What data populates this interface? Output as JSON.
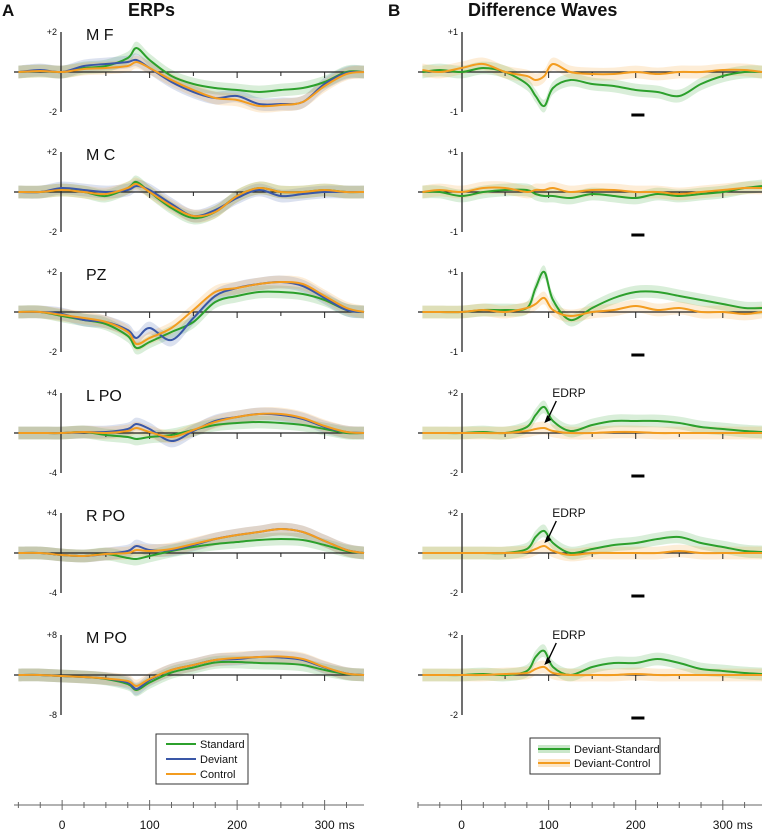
{
  "panel_a": {
    "letter": "A",
    "title": "ERPs"
  },
  "panel_b": {
    "letter": "B",
    "title": "Difference Waves"
  },
  "colors": {
    "standard": "#2ca02c",
    "deviant": "#3a57a7",
    "control": "#f39c1f",
    "axis": "#222222"
  },
  "legend_a": [
    "Standard",
    "Deviant",
    "Control"
  ],
  "legend_b": [
    "Deviant-Standard",
    "Deviant-Control"
  ],
  "x_axis": {
    "ticks": [
      "0",
      "100",
      "200",
      "300"
    ],
    "unit": "ms"
  },
  "annotation": "EDRP",
  "chart_data": [
    {
      "type": "line",
      "panel": "A",
      "channel": "M F",
      "ylim": [
        -2,
        2
      ],
      "ytick_labels": [
        "+2",
        "-2"
      ],
      "xlim": [
        -55,
        345
      ],
      "x": [
        -50,
        -25,
        0,
        25,
        50,
        75,
        85,
        100,
        125,
        150,
        175,
        200,
        225,
        250,
        275,
        300,
        325,
        345
      ],
      "series": [
        {
          "name": "Standard",
          "values": [
            0,
            0.05,
            0,
            0.2,
            0.3,
            0.7,
            1.2,
            0.6,
            -0.2,
            -0.6,
            -0.8,
            -0.9,
            -1.0,
            -0.9,
            -0.8,
            -0.5,
            0,
            0
          ]
        },
        {
          "name": "Deviant",
          "values": [
            0,
            0.1,
            0,
            0.3,
            0.4,
            0.5,
            0.6,
            0.2,
            -0.5,
            -1.0,
            -1.3,
            -1.2,
            -1.6,
            -1.6,
            -1.5,
            -0.6,
            -0.05,
            0
          ]
        },
        {
          "name": "Control",
          "values": [
            0,
            0.05,
            0,
            0.15,
            0.2,
            0.3,
            0.5,
            0.2,
            -0.4,
            -0.9,
            -1.3,
            -1.4,
            -1.7,
            -1.65,
            -1.5,
            -0.7,
            -0.1,
            0
          ]
        }
      ]
    },
    {
      "type": "line",
      "panel": "A",
      "channel": "M C",
      "ylim": [
        -2,
        2
      ],
      "ytick_labels": [
        "+2",
        "-2"
      ],
      "xlim": [
        -55,
        345
      ],
      "x": [
        -50,
        -25,
        0,
        25,
        50,
        75,
        85,
        100,
        125,
        150,
        175,
        200,
        225,
        250,
        275,
        300,
        325,
        345
      ],
      "series": [
        {
          "name": "Standard",
          "values": [
            0,
            0,
            0.1,
            0,
            -0.2,
            0.2,
            0.5,
            0,
            -0.8,
            -1.3,
            -1.0,
            -0.2,
            0.2,
            0,
            0,
            0.1,
            0,
            0
          ]
        },
        {
          "name": "Deviant",
          "values": [
            0,
            0,
            0.2,
            0.1,
            0,
            0.1,
            0.3,
            0.1,
            -0.6,
            -1.2,
            -0.9,
            -0.3,
            0.1,
            -0.2,
            -0.1,
            0,
            0,
            0
          ]
        },
        {
          "name": "Control",
          "values": [
            0,
            0,
            0.1,
            0,
            -0.1,
            0.2,
            0.4,
            0,
            -0.7,
            -1.2,
            -1.0,
            -0.2,
            0.2,
            0,
            0,
            0.1,
            0,
            0
          ]
        }
      ]
    },
    {
      "type": "line",
      "panel": "A",
      "channel": "PZ",
      "ylim": [
        -2,
        2
      ],
      "ytick_labels": [
        "+2",
        "-2"
      ],
      "xlim": [
        -55,
        345
      ],
      "x": [
        -50,
        -25,
        0,
        25,
        50,
        75,
        85,
        100,
        125,
        150,
        175,
        200,
        225,
        250,
        275,
        300,
        325,
        345
      ],
      "series": [
        {
          "name": "Standard",
          "values": [
            0,
            0,
            -0.2,
            -0.4,
            -0.6,
            -1.2,
            -1.8,
            -1.5,
            -1.0,
            -0.5,
            0.5,
            0.8,
            1.0,
            1.0,
            0.9,
            0.6,
            0.1,
            0
          ]
        },
        {
          "name": "Deviant",
          "values": [
            0,
            0,
            -0.1,
            -0.4,
            -0.5,
            -0.9,
            -1.3,
            -0.8,
            -1.4,
            -0.3,
            0.8,
            1.2,
            1.4,
            1.5,
            1.3,
            0.7,
            0.1,
            0
          ]
        },
        {
          "name": "Control",
          "values": [
            0,
            0,
            -0.15,
            -0.3,
            -0.5,
            -1.0,
            -1.6,
            -1.3,
            -0.8,
            0.1,
            1.0,
            1.2,
            1.4,
            1.5,
            1.4,
            0.8,
            0.2,
            0
          ]
        }
      ]
    },
    {
      "type": "line",
      "panel": "A",
      "channel": "L PO",
      "ylim": [
        -4,
        4
      ],
      "ytick_labels": [
        "+4",
        "-4"
      ],
      "xlim": [
        -55,
        345
      ],
      "x": [
        -50,
        -25,
        0,
        25,
        50,
        75,
        85,
        100,
        125,
        150,
        175,
        200,
        225,
        250,
        275,
        300,
        325,
        345
      ],
      "series": [
        {
          "name": "Standard",
          "values": [
            0,
            0,
            0,
            0.1,
            -0.2,
            -0.4,
            -0.6,
            -0.4,
            -0.2,
            0.3,
            0.8,
            1.0,
            1.1,
            1.0,
            0.8,
            0.4,
            0,
            0
          ]
        },
        {
          "name": "Deviant",
          "values": [
            0,
            0,
            0,
            0.1,
            0.1,
            0.4,
            0.9,
            0.4,
            -0.8,
            0.2,
            1.2,
            1.6,
            1.9,
            1.8,
            1.4,
            0.6,
            0.1,
            0
          ]
        },
        {
          "name": "Control",
          "values": [
            0,
            0,
            0,
            0.1,
            0,
            0.2,
            0.5,
            0.1,
            -0.4,
            0.3,
            1.1,
            1.6,
            1.9,
            1.9,
            1.5,
            0.7,
            0.1,
            0
          ]
        }
      ]
    },
    {
      "type": "line",
      "panel": "A",
      "channel": "R PO",
      "ylim": [
        -4,
        4
      ],
      "ytick_labels": [
        "+4",
        "-4"
      ],
      "xlim": [
        -55,
        345
      ],
      "x": [
        -50,
        -25,
        0,
        25,
        50,
        75,
        85,
        100,
        125,
        150,
        175,
        200,
        225,
        250,
        275,
        300,
        325,
        345
      ],
      "series": [
        {
          "name": "Standard",
          "values": [
            0,
            0,
            -0.2,
            -0.3,
            -0.1,
            -0.5,
            -0.6,
            -0.3,
            0.2,
            0.6,
            0.9,
            1.1,
            1.3,
            1.4,
            1.3,
            0.8,
            0.2,
            0
          ]
        },
        {
          "name": "Deviant",
          "values": [
            0,
            0,
            -0.2,
            -0.3,
            -0.1,
            0.2,
            0.7,
            0.3,
            0.3,
            0.8,
            1.4,
            1.8,
            2.1,
            2.4,
            2.1,
            1.2,
            0.3,
            0
          ]
        },
        {
          "name": "Control",
          "values": [
            0,
            0,
            -0.2,
            -0.3,
            -0.1,
            0,
            0.3,
            0.2,
            0.4,
            0.9,
            1.4,
            1.8,
            2.1,
            2.4,
            2.1,
            1.2,
            0.3,
            0
          ]
        }
      ]
    },
    {
      "type": "line",
      "panel": "A",
      "channel": "M PO",
      "ylim": [
        -8,
        8
      ],
      "ytick_labels": [
        "+8",
        "-8"
      ],
      "xlim": [
        -55,
        345
      ],
      "x": [
        -50,
        -25,
        0,
        25,
        50,
        75,
        85,
        100,
        125,
        150,
        175,
        200,
        225,
        250,
        275,
        300,
        325,
        345
      ],
      "series": [
        {
          "name": "Standard",
          "values": [
            0,
            0,
            -0.2,
            -0.4,
            -0.8,
            -1.8,
            -3.0,
            -1.5,
            0.5,
            1.5,
            2.5,
            2.6,
            2.4,
            2.3,
            2.0,
            1.0,
            0.2,
            0
          ]
        },
        {
          "name": "Deviant",
          "values": [
            0,
            0,
            -0.2,
            -0.4,
            -0.7,
            -1.5,
            -2.8,
            -1.0,
            1.0,
            2.0,
            3.0,
            3.2,
            3.6,
            3.5,
            3.0,
            1.5,
            0.3,
            0
          ]
        },
        {
          "name": "Control",
          "values": [
            0,
            0,
            -0.2,
            -0.4,
            -0.7,
            -1.2,
            -2.2,
            -0.8,
            1.0,
            2.0,
            3.0,
            3.4,
            3.6,
            3.7,
            3.2,
            1.6,
            0.3,
            0
          ]
        }
      ]
    },
    {
      "type": "line",
      "panel": "B",
      "channel": "",
      "ylim": [
        -1,
        1
      ],
      "ytick_labels": [
        "+1",
        "-1"
      ],
      "xlim": [
        -50,
        345
      ],
      "x": [
        -45,
        -25,
        0,
        25,
        50,
        75,
        85,
        95,
        105,
        125,
        150,
        175,
        200,
        225,
        250,
        275,
        300,
        325,
        345
      ],
      "series": [
        {
          "name": "Deviant-Standard",
          "values": [
            0,
            0.05,
            0,
            0.1,
            0,
            -0.3,
            -0.6,
            -0.85,
            -0.4,
            -0.2,
            -0.3,
            -0.35,
            -0.45,
            -0.5,
            -0.6,
            -0.3,
            -0.1,
            0,
            0
          ]
        },
        {
          "name": "Deviant-Control",
          "values": [
            0.05,
            0,
            0.1,
            0.2,
            0,
            -0.1,
            -0.2,
            -0.1,
            0.2,
            0,
            -0.05,
            -0.05,
            0,
            -0.05,
            0,
            0,
            0.05,
            0.05,
            0
          ]
        }
      ]
    },
    {
      "type": "line",
      "panel": "B",
      "channel": "",
      "ylim": [
        -1,
        1
      ],
      "ytick_labels": [
        "+1",
        "-1"
      ],
      "xlim": [
        -50,
        345
      ],
      "x": [
        -45,
        -25,
        0,
        25,
        50,
        75,
        85,
        95,
        105,
        125,
        150,
        175,
        200,
        225,
        250,
        275,
        300,
        325,
        345
      ],
      "series": [
        {
          "name": "Deviant-Standard",
          "values": [
            0,
            0,
            -0.1,
            0,
            0.05,
            0.05,
            -0.05,
            -0.1,
            -0.1,
            -0.15,
            -0.05,
            -0.1,
            -0.15,
            -0.05,
            -0.1,
            -0.05,
            0,
            0.1,
            0.15
          ]
        },
        {
          "name": "Deviant-Control",
          "values": [
            0,
            0.05,
            0,
            0.1,
            0.1,
            0,
            0.05,
            0.05,
            0.1,
            0,
            0.05,
            0.05,
            0,
            0,
            -0.05,
            0,
            0.05,
            0.1,
            0.1
          ]
        }
      ]
    },
    {
      "type": "line",
      "panel": "B",
      "channel": "",
      "ylim": [
        -1,
        1
      ],
      "ytick_labels": [
        "+1",
        "-1"
      ],
      "xlim": [
        -50,
        345
      ],
      "x": [
        -45,
        -25,
        0,
        25,
        50,
        75,
        85,
        95,
        105,
        125,
        150,
        175,
        200,
        225,
        250,
        275,
        300,
        325,
        345
      ],
      "series": [
        {
          "name": "Deviant-Standard",
          "values": [
            0,
            0,
            0,
            0.05,
            0.05,
            0.1,
            0.6,
            1.0,
            0.3,
            -0.2,
            0.1,
            0.35,
            0.5,
            0.5,
            0.4,
            0.3,
            0.2,
            0.1,
            0.1
          ]
        },
        {
          "name": "Deviant-Control",
          "values": [
            0,
            0,
            0,
            0.05,
            0,
            0.1,
            0.2,
            0.35,
            0.05,
            -0.1,
            0,
            0.05,
            0.15,
            0.05,
            0.1,
            0,
            0,
            -0.05,
            0
          ]
        }
      ]
    },
    {
      "type": "line",
      "panel": "B",
      "channel": "",
      "ylim": [
        -2,
        2
      ],
      "ytick_labels": [
        "+2",
        "-2"
      ],
      "xlim": [
        -50,
        345
      ],
      "x": [
        -45,
        -25,
        0,
        25,
        50,
        75,
        85,
        95,
        105,
        125,
        150,
        175,
        200,
        225,
        250,
        275,
        300,
        325,
        345
      ],
      "series": [
        {
          "name": "Deviant-Standard",
          "values": [
            0,
            0,
            0,
            0.05,
            0,
            0.3,
            0.9,
            1.3,
            0.6,
            0.1,
            0.4,
            0.6,
            0.6,
            0.6,
            0.5,
            0.3,
            0.2,
            0.1,
            0.05
          ]
        },
        {
          "name": "Deviant-Control",
          "values": [
            0,
            0,
            0,
            0,
            0,
            0.1,
            0.2,
            0.25,
            0.1,
            0,
            0,
            0.05,
            0.05,
            0,
            0,
            0,
            0,
            0,
            0
          ]
        }
      ]
    },
    {
      "type": "line",
      "panel": "B",
      "channel": "",
      "ylim": [
        -2,
        2
      ],
      "ytick_labels": [
        "+2",
        "-2"
      ],
      "xlim": [
        -50,
        345
      ],
      "x": [
        -45,
        -25,
        0,
        25,
        50,
        75,
        85,
        95,
        105,
        125,
        150,
        175,
        200,
        225,
        250,
        275,
        300,
        325,
        345
      ],
      "series": [
        {
          "name": "Deviant-Standard",
          "values": [
            0,
            0,
            0,
            0,
            0,
            0.2,
            0.8,
            1.1,
            0.5,
            0,
            0.2,
            0.4,
            0.5,
            0.7,
            0.8,
            0.5,
            0.3,
            0.1,
            0.05
          ]
        },
        {
          "name": "Deviant-Control",
          "values": [
            0,
            0,
            0,
            0,
            0,
            0.05,
            0.2,
            0.35,
            0.1,
            -0.1,
            0,
            0,
            0,
            0,
            0.1,
            0,
            0,
            0,
            0
          ]
        }
      ]
    },
    {
      "type": "line",
      "panel": "B",
      "channel": "",
      "ylim": [
        -2,
        2
      ],
      "ytick_labels": [
        "+2",
        "-2"
      ],
      "xlim": [
        -50,
        345
      ],
      "x": [
        -45,
        -25,
        0,
        25,
        50,
        75,
        85,
        95,
        105,
        125,
        150,
        175,
        200,
        225,
        250,
        275,
        300,
        325,
        345
      ],
      "series": [
        {
          "name": "Deviant-Standard",
          "values": [
            0,
            0,
            0,
            0.05,
            0,
            0.2,
            0.9,
            1.2,
            0.4,
            0,
            0.4,
            0.6,
            0.6,
            0.8,
            0.6,
            0.3,
            0.2,
            0.1,
            0.05
          ]
        },
        {
          "name": "Deviant-Control",
          "values": [
            0,
            0,
            0,
            0,
            0.05,
            0.1,
            0.3,
            0.4,
            0.1,
            0,
            0,
            0,
            0.05,
            0,
            0,
            0,
            0,
            0,
            0
          ]
        }
      ]
    }
  ]
}
